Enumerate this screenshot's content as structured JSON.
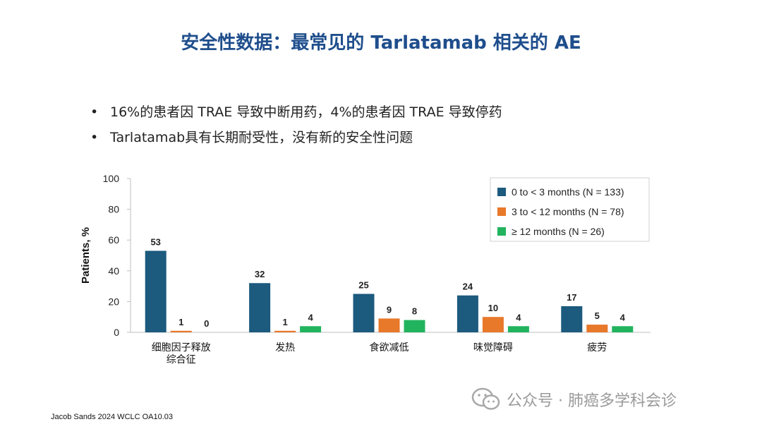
{
  "title": "安全性数据：最常见的 Tarlatamab 相关的 AE",
  "bullets": [
    "16%的患者因 TRAE 导致中断用药，4%的患者因 TRAE 导致停药",
    "Tarlatamab具有长期耐受性，没有新的安全性问题"
  ],
  "bullet_glyph": "•",
  "footer": "Jacob Sands 2024 WCLC OA10.03",
  "watermark": "公众号 · 肺癌多学科会诊",
  "colors": {
    "title": "#1f4e8c",
    "series": [
      "#1c5a7e",
      "#e8782a",
      "#22b35e"
    ],
    "axis": "#bfbfbf"
  },
  "chart_data": {
    "type": "bar",
    "title": "",
    "xlabel": "",
    "ylabel": "Patients, %",
    "ylim": [
      0,
      100
    ],
    "yticks": [
      0,
      20,
      40,
      60,
      80,
      100
    ],
    "grid": false,
    "legend_position": "top-right",
    "categories": [
      [
        "细胞因子释放",
        "综合征"
      ],
      [
        "发热"
      ],
      [
        "食欲减低"
      ],
      [
        "味觉障碍"
      ],
      [
        "疲劳"
      ]
    ],
    "series": [
      {
        "name": "0 to < 3 months (N = 133)",
        "values": [
          53,
          32,
          25,
          24,
          17
        ]
      },
      {
        "name": "3 to < 12 months (N = 78)",
        "values": [
          1,
          1,
          9,
          10,
          5
        ]
      },
      {
        "name": "≥ 12 months (N = 26)",
        "values": [
          0,
          4,
          8,
          4,
          4
        ]
      }
    ]
  }
}
